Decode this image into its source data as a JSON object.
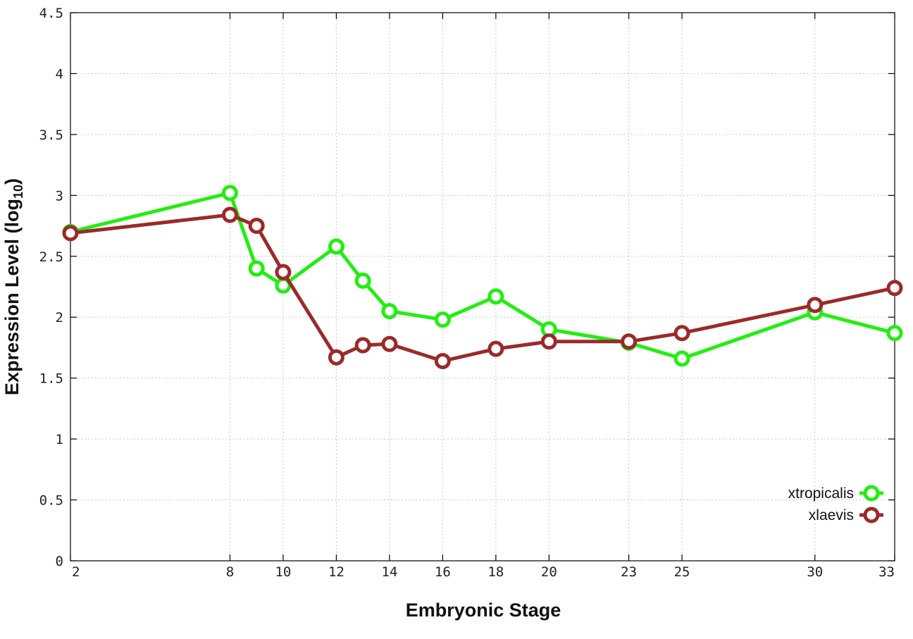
{
  "chart_data": {
    "type": "line",
    "title": "",
    "xlabel": "Embryonic Stage",
    "ylabel_text": "Expression Level (log",
    "ylabel_sub": "10",
    "ylabel_close": ")",
    "x_ticks": [
      "2",
      "8",
      "10",
      "12",
      "14",
      "16",
      "18",
      "20",
      "23",
      "25",
      "30",
      "33"
    ],
    "y_ticks": [
      "0",
      "0.5",
      "1",
      "1.5",
      "2",
      "2.5",
      "3",
      "3.5",
      "4",
      "4.5"
    ],
    "xlim": [
      2,
      33
    ],
    "ylim": [
      0,
      4.5
    ],
    "grid": true,
    "legend_position": "bottom-right",
    "series": [
      {
        "name": "xtropicalis",
        "color": "#22ee11",
        "points": [
          {
            "x": 2,
            "y": 2.7
          },
          {
            "x": 8,
            "y": 3.02
          },
          {
            "x": 9,
            "y": 2.4
          },
          {
            "x": 10,
            "y": 2.26
          },
          {
            "x": 12,
            "y": 2.58
          },
          {
            "x": 13,
            "y": 2.3
          },
          {
            "x": 14,
            "y": 2.05
          },
          {
            "x": 16,
            "y": 1.98
          },
          {
            "x": 18,
            "y": 2.17
          },
          {
            "x": 20,
            "y": 1.9
          },
          {
            "x": 23,
            "y": 1.79
          },
          {
            "x": 25,
            "y": 1.66
          },
          {
            "x": 30,
            "y": 2.04
          },
          {
            "x": 33,
            "y": 1.87
          }
        ]
      },
      {
        "name": "xlaevis",
        "color": "#9b2a2a",
        "points": [
          {
            "x": 2,
            "y": 2.69
          },
          {
            "x": 8,
            "y": 2.84
          },
          {
            "x": 9,
            "y": 2.75
          },
          {
            "x": 10,
            "y": 2.37
          },
          {
            "x": 12,
            "y": 1.67
          },
          {
            "x": 13,
            "y": 1.77
          },
          {
            "x": 14,
            "y": 1.78
          },
          {
            "x": 16,
            "y": 1.64
          },
          {
            "x": 18,
            "y": 1.74
          },
          {
            "x": 20,
            "y": 1.8
          },
          {
            "x": 23,
            "y": 1.8
          },
          {
            "x": 25,
            "y": 1.87
          },
          {
            "x": 30,
            "y": 2.1
          },
          {
            "x": 33,
            "y": 2.24
          }
        ]
      }
    ]
  }
}
